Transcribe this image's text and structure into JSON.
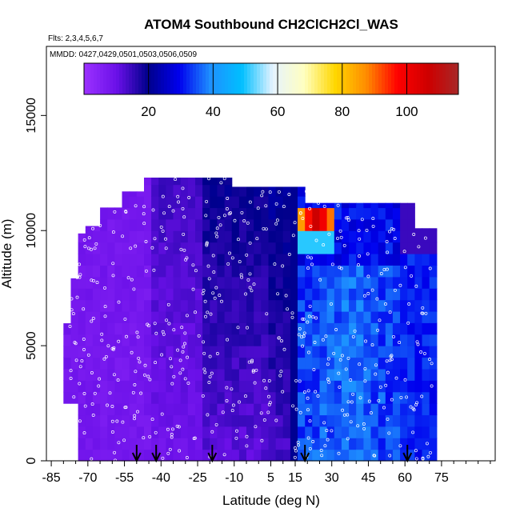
{
  "chart_data": {
    "type": "heatmap",
    "title": "ATOM4 Southbound CH2ClCH2Cl_WAS",
    "flights_label": "Flts: 2,3,4,5,6,7",
    "dates_label": "MMDD: 0427,0429,0501,0503,0506,0509",
    "xlabel": "Latitude (deg N)",
    "ylabel": "Altitude (m)",
    "xlim": [
      -87,
      97
    ],
    "ylim": [
      0,
      18000
    ],
    "x_ticks": [
      -85,
      -70,
      -55,
      -40,
      -25,
      -10,
      5,
      15,
      30,
      45,
      60,
      75
    ],
    "y_ticks": [
      0,
      5000,
      10000,
      15000
    ],
    "colorbar": {
      "range": [
        0,
        116
      ],
      "ticks": [
        20,
        40,
        60,
        80,
        100
      ],
      "colors": [
        "#9a30ff",
        "#6a10e8",
        "#00008b",
        "#0000ee",
        "#1e90ff",
        "#00bfff",
        "#e6f3ff",
        "#ffffc0",
        "#ffd700",
        "#ff8c00",
        "#ff0000",
        "#cd0000",
        "#a52a2a"
      ]
    },
    "arrows_x": [
      -50,
      -42,
      -19,
      19,
      61
    ],
    "colormap": "purple-blue-white-yellow-red",
    "grid": false
  }
}
